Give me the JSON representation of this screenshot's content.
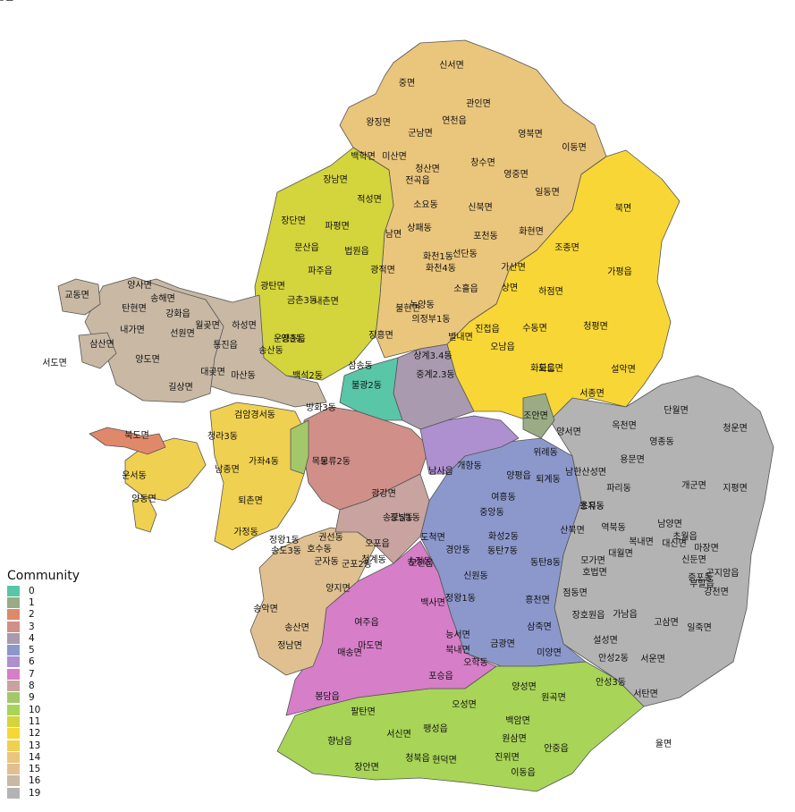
{
  "legend": {
    "title": "Community",
    "entries": [
      {
        "label": "0",
        "color": "#59c6a8"
      },
      {
        "label": "1",
        "color": "#9aab85"
      },
      {
        "label": "2",
        "color": "#e0886a"
      },
      {
        "label": "3",
        "color": "#d08f88"
      },
      {
        "label": "4",
        "color": "#a99ab0"
      },
      {
        "label": "5",
        "color": "#8c98cc"
      },
      {
        "label": "6",
        "color": "#ae8fd0"
      },
      {
        "label": "7",
        "color": "#d67ec8"
      },
      {
        "label": "8",
        "color": "#c8a3a0"
      },
      {
        "label": "9",
        "color": "#a3c86a"
      },
      {
        "label": "10",
        "color": "#a8d457"
      },
      {
        "label": "11",
        "color": "#d4d43c"
      },
      {
        "label": "12",
        "color": "#f8d635"
      },
      {
        "label": "13",
        "color": "#f0d050"
      },
      {
        "label": "14",
        "color": "#eac57c"
      },
      {
        "label": "15",
        "color": "#e0c090"
      },
      {
        "label": "16",
        "color": "#c8b8a4"
      },
      {
        "label": "19",
        "color": "#b3b3b3"
      }
    ]
  },
  "regions": [
    {
      "name": "north-region-14",
      "color": "#eac57c"
    },
    {
      "name": "northwest-region-11",
      "color": "#d4d43c"
    },
    {
      "name": "west-region-16",
      "color": "#c8b8a4"
    },
    {
      "name": "northeast-region-12",
      "color": "#f8d635"
    },
    {
      "name": "east-region-19",
      "color": "#b3b3b3"
    },
    {
      "name": "central-east-region-5",
      "color": "#8c98cc"
    },
    {
      "name": "south-region-10",
      "color": "#a8d457"
    },
    {
      "name": "south-central-region-7",
      "color": "#d67ec8"
    },
    {
      "name": "southwest-region-15",
      "color": "#e0c090"
    },
    {
      "name": "west-coast-region-13",
      "color": "#f0d050"
    },
    {
      "name": "yeongjong-region-13",
      "color": "#f0d050"
    },
    {
      "name": "yongyu-island-13",
      "color": "#f0d050"
    },
    {
      "name": "bukdo-island-2",
      "color": "#e0886a"
    },
    {
      "name": "seoul-core-region-3",
      "color": "#d08f88"
    },
    {
      "name": "seoul-south-region-8",
      "color": "#c8a3a0"
    },
    {
      "name": "seoul-east-region-6",
      "color": "#ae8fd0"
    },
    {
      "name": "seoul-northeast-region-4",
      "color": "#a99ab0"
    },
    {
      "name": "seoul-north-region-0",
      "color": "#59c6a8"
    },
    {
      "name": "bucheon-region-9",
      "color": "#a3c86a"
    },
    {
      "name": "choan-region-1",
      "color": "#9aab85"
    },
    {
      "name": "ganghwa-island-16",
      "color": "#c8b8a4"
    },
    {
      "name": "gyodong-island-16",
      "color": "#c8b8a4"
    },
    {
      "name": "seokmo-island-16",
      "color": "#c8b8a4"
    }
  ],
  "place_labels": [
    "신서면",
    "중면",
    "관인면",
    "왕징면",
    "연천읍",
    "군남면",
    "영북면",
    "이동면",
    "백학면",
    "미산면",
    "청산면",
    "창수면",
    "영중면",
    "장남면",
    "적성면",
    "전곡읍",
    "소요동",
    "신북면",
    "일동면",
    "북면",
    "장단면",
    "파평면",
    "남면",
    "상패동",
    "포천동",
    "화현면",
    "문산읍",
    "법원읍",
    "화천1동",
    "선단동",
    "조종면",
    "가평읍",
    "교동면",
    "파주읍",
    "광적면",
    "화천4동",
    "가산면",
    "양사면",
    "송해면",
    "탄현면",
    "광탄면",
    "내촌면",
    "상면",
    "하점면",
    "강화읍",
    "금촌3동",
    "소흘읍",
    "불현면",
    "녹양동",
    "의정부1동",
    "내가면",
    "선원면",
    "월곶면",
    "하성면",
    "진접읍",
    "수동면",
    "청평면",
    "삼산면",
    "운정3동",
    "양촌읍",
    "장흥면",
    "별내면",
    "오남읍",
    "송산동",
    "통진읍",
    "양도면",
    "대곶면",
    "서도면",
    "상계3.4동",
    "화도읍",
    "설악면",
    "마산동",
    "백석2동",
    "삼송동",
    "불광2동",
    "화도면",
    "길상면",
    "중계2.3동",
    "서종면",
    "단월면",
    "검암경서동",
    "방화3동",
    "조안면",
    "청운면",
    "청라3동",
    "양서면",
    "옥천면",
    "정왕1동",
    "운서동",
    "북도면",
    "가좌4동",
    "목동",
    "오류2동",
    "퇴계동",
    "개항동",
    "위례동",
    "남종면",
    "영종동",
    "용문면",
    "양평읍",
    "남한산성면",
    "광강면",
    "파리동",
    "개군면",
    "지평면",
    "양동면",
    "용유동",
    "퇴촌면",
    "송도5동",
    "가정동",
    "권선동",
    "송도3동",
    "군자동",
    "정왕1동",
    "호수동",
    "초지동",
    "역북동",
    "남양면",
    "초월읍",
    "산북면",
    "대신면",
    "복내면",
    "곤지암읍",
    "송악면",
    "흥천면",
    "강천면",
    "송산면",
    "양지면",
    "여주읍",
    "마도면",
    "매송면",
    "봉담읍",
    "정남면",
    "팔탄면",
    "향남읍",
    "장안면",
    "서신면",
    "청북읍",
    "포승읍",
    "현덕면",
    "오성면",
    "팽성읍",
    "진위면",
    "안중읍",
    "원곡면",
    "서탄면",
    "미양면",
    "삼죽면",
    "금광면",
    "율면",
    "백암면",
    "원삼면",
    "이동읍",
    "양성면",
    "안성3동",
    "안성2동",
    "서운면",
    "고삼면",
    "일죽면",
    "설성면",
    "장호원읍",
    "가남읍",
    "점동면",
    "모가면",
    "호법면",
    "대월면",
    "마장면",
    "신둔면",
    "부발읍",
    "증포동",
    "백사면",
    "능서면",
    "북내면",
    "오학동",
    "여흥동",
    "중앙동",
    "화성2동",
    "동탄7동",
    "동탄8동",
    "남사읍",
    "송정동",
    "광남1동",
    "오포읍",
    "모현읍",
    "도척면",
    "경안동",
    "신원동",
    "청계동",
    "군포2동",
    "상현1동",
    "동천동",
    "죽전1동",
    "동백1동",
    "숙지동",
    "오전동"
  ]
}
